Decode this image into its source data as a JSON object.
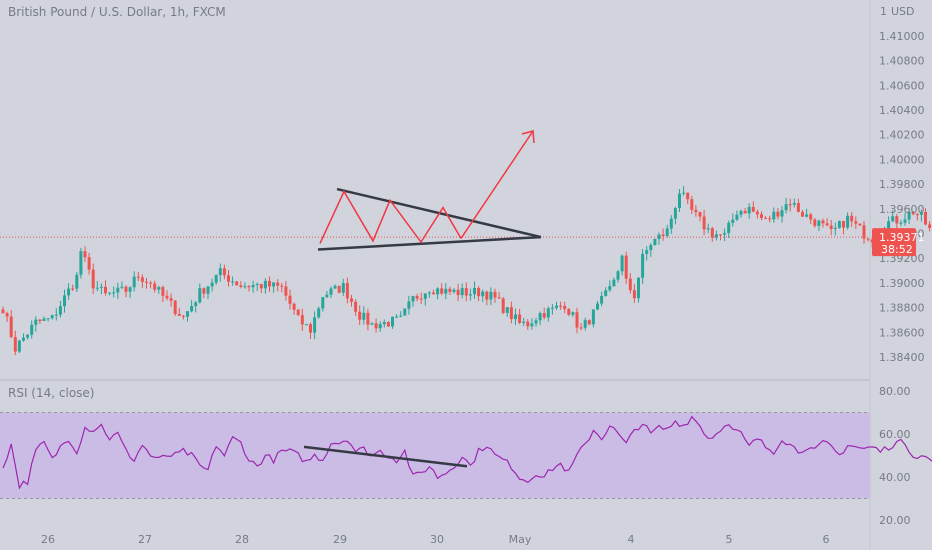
{
  "chart_data": [
    {
      "type": "candlestick",
      "title": "British Pound / U.S. Dollar, 1h, FXCM",
      "currency": "USD",
      "currency_prefix": "1",
      "y_ticks": [
        "1.41000",
        "1.40800",
        "1.40600",
        "1.40400",
        "1.40200",
        "1.40000",
        "1.39800",
        "1.39600",
        "1.39400",
        "1.39200",
        "1.39000",
        "1.38800",
        "1.38600",
        "1.38400"
      ],
      "ylim": [
        1.3832,
        1.4118
      ],
      "x_ticks": [
        "26",
        "27",
        "28",
        "29",
        "30",
        "May",
        "4",
        "5",
        "6"
      ],
      "last_price": "1.39371",
      "last_price_value": 1.39371,
      "countdown": "38:52",
      "colors": {
        "up": "#26a69a",
        "down": "#ef5350",
        "price_line": "#ef5350",
        "pattern": "#363a45",
        "zigzag": "#f23645",
        "arrow": "#f23645"
      },
      "patterns": {
        "triangle_upper": [
          [
            "29 start",
            1.3976
          ],
          [
            "breakout",
            1.3937
          ]
        ],
        "triangle_lower": [
          [
            "28 end",
            1.3927
          ],
          [
            "breakout",
            1.3937
          ]
        ],
        "zigzag_points": [
          1.3932,
          1.3974,
          1.3934,
          1.3967,
          1.3933,
          1.3961,
          1.3936
        ],
        "projection_target": 1.4023
      }
    },
    {
      "type": "line",
      "title": "RSI (14, close)",
      "y_ticks": [
        "80.00",
        "60.00",
        "40.00",
        "20.00"
      ],
      "ylim": [
        18,
        85
      ],
      "band": [
        30,
        70
      ],
      "colors": {
        "line": "#9c27b0",
        "band": "#cbbce5",
        "divergence": "#363a45"
      },
      "divergence": [
        54,
        45
      ]
    }
  ]
}
